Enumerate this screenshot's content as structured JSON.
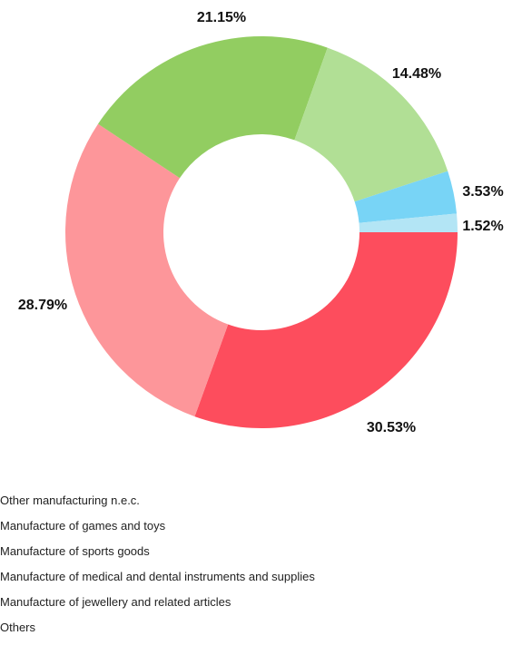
{
  "chart_data": {
    "type": "pie",
    "donut": true,
    "slices": [
      {
        "label": "Other manufacturing n.e.c.",
        "value": 30.53,
        "display": "30.53%",
        "color": "#fd4d5d"
      },
      {
        "label": "Manufacture of games and toys",
        "value": 28.79,
        "display": "28.79%",
        "color": "#fd969a"
      },
      {
        "label": "Manufacture of sports goods",
        "value": 21.15,
        "display": "21.15%",
        "color": "#92cd61"
      },
      {
        "label": "Manufacture of medical and dental instruments and supplies",
        "value": 14.48,
        "display": "14.48%",
        "color": "#b1df95"
      },
      {
        "label": "Manufacture of jewellery and related articles",
        "value": 3.53,
        "display": "3.53%",
        "color": "#78d4f6"
      },
      {
        "label": "Others",
        "value": 1.52,
        "display": "1.52%",
        "color": "#b3e5f5"
      }
    ],
    "legend": [
      "Other manufacturing n.e.c.",
      "Manufacture of games and toys",
      "Manufacture of sports goods",
      "Manufacture of medical and dental instruments and supplies",
      "Manufacture of jewellery and related articles",
      "Others"
    ],
    "legend_position": "bottom"
  }
}
